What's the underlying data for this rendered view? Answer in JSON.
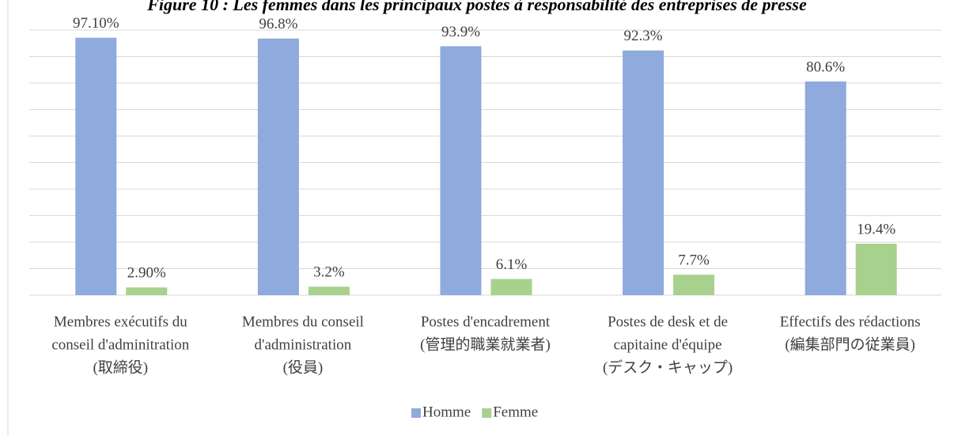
{
  "chart_data": {
    "type": "bar",
    "title": "Figure 10 : Les femmes dans les principaux postes à responsabilité des entreprises de presse",
    "categories": [
      [
        "Membres exécutifs du",
        "conseil d'adminitration",
        "(取締役)"
      ],
      [
        "Membres du conseil",
        "d'administration",
        "(役員)"
      ],
      [
        "Postes d'encadrement",
        "(管理的職業就業者)"
      ],
      [
        "Postes de desk et de",
        "capitaine d'équipe",
        "(デスク・キャップ)"
      ],
      [
        "Effectifs des rédactions",
        "(編集部門の従業員)"
      ]
    ],
    "series": [
      {
        "name": "Homme",
        "color": "#8faadc",
        "values": [
          97.1,
          96.8,
          93.9,
          92.3,
          80.6
        ],
        "value_labels": [
          "97.10%",
          "96.8%",
          "93.9%",
          "92.3%",
          "80.6%"
        ]
      },
      {
        "name": "Femme",
        "color": "#a9d18e",
        "values": [
          2.9,
          3.2,
          6.1,
          7.7,
          19.4
        ],
        "value_labels": [
          "2.90%",
          "3.2%",
          "6.1%",
          "7.7%",
          "19.4%"
        ]
      }
    ],
    "ylim": [
      0,
      100
    ],
    "yticks": [
      0,
      10,
      20,
      30,
      40,
      50,
      60,
      70,
      80,
      90,
      100
    ],
    "grid": true,
    "legend": "bottom"
  }
}
